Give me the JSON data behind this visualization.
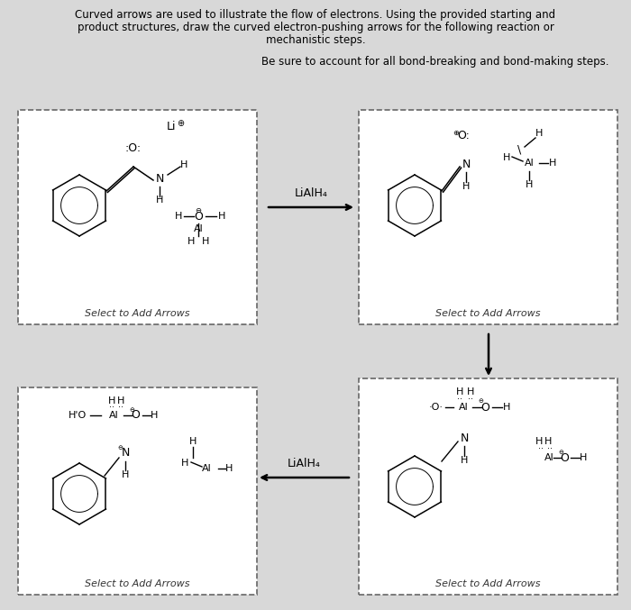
{
  "bg_color": "#d8d8d8",
  "white": "#ffffff",
  "black": "#000000",
  "title1": "Curved arrows are used to illustrate the flow of electrons. Using the provided starting and",
  "title2": "product structures, draw the curved electron-pushing arrows for the following reaction or",
  "title3": "mechanistic steps.",
  "subtitle": "Be sure to account for all bond-breaking and bond-making steps.",
  "select_label": "Select to Add Arrows",
  "liaih4": "LiAlH₄",
  "fig_w": 7.0,
  "fig_h": 6.77,
  "dpi": 100
}
